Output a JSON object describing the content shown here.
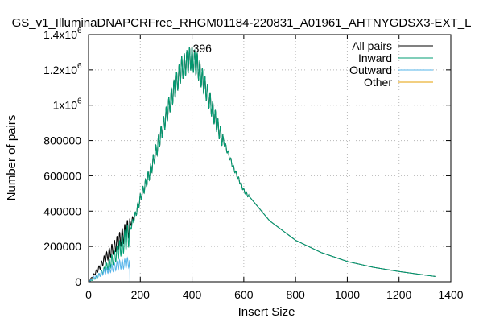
{
  "chart_data": {
    "type": "line",
    "title": "GS_v1_IlluminaDNAPCRFree_RHGM01184-220831_A01961_AHTNYGDSX3-EXT_L",
    "xlabel": "Insert Size",
    "ylabel": "Number of pairs",
    "xlim": [
      0,
      1400
    ],
    "ylim": [
      0,
      1400000
    ],
    "x_ticks": [
      "0",
      "200",
      "400",
      "600",
      "800",
      "1000",
      "1200",
      "1400"
    ],
    "y_ticks": [
      {
        "base": "0",
        "exp": ""
      },
      {
        "base": "200000",
        "exp": ""
      },
      {
        "base": "400000",
        "exp": ""
      },
      {
        "base": "600000",
        "exp": ""
      },
      {
        "base": "800000",
        "exp": ""
      },
      {
        "base": "1x10",
        "exp": "6"
      },
      {
        "base": "1.2x10",
        "exp": "6"
      },
      {
        "base": "1.4x10",
        "exp": "6"
      }
    ],
    "grid": true,
    "legend_position": "top-right",
    "peak_annotation": {
      "label": "396",
      "x": 396,
      "y": 1290000
    },
    "series": [
      {
        "name": "All pairs",
        "color": "#000000",
        "x": [
          0,
          20,
          40,
          60,
          80,
          100,
          120,
          140,
          160,
          180,
          200,
          240,
          280,
          320,
          360,
          396,
          420,
          460,
          500,
          560,
          600,
          700,
          800,
          900,
          1000,
          1100,
          1200,
          1340
        ],
        "y": [
          0,
          40000,
          80000,
          130000,
          170000,
          210000,
          250000,
          290000,
          330000,
          380000,
          480000,
          640000,
          850000,
          1060000,
          1230000,
          1290000,
          1250000,
          1080000,
          890000,
          650000,
          520000,
          345000,
          235000,
          165000,
          115000,
          82000,
          58000,
          30000
        ]
      },
      {
        "name": "Inward",
        "color": "#009e73",
        "x": [
          0,
          20,
          40,
          60,
          80,
          100,
          120,
          140,
          160,
          180,
          200,
          240,
          280,
          320,
          360,
          396,
          420,
          460,
          500,
          560,
          600,
          700,
          800,
          900,
          1000,
          1100,
          1200,
          1340
        ],
        "y": [
          0,
          15000,
          40000,
          70000,
          110000,
          150000,
          200000,
          250000,
          300000,
          380000,
          480000,
          640000,
          850000,
          1060000,
          1230000,
          1290000,
          1250000,
          1080000,
          890000,
          650000,
          520000,
          345000,
          235000,
          165000,
          115000,
          82000,
          58000,
          30000
        ]
      },
      {
        "name": "Outward",
        "color": "#56b4e9",
        "x": [
          0,
          20,
          40,
          60,
          80,
          100,
          120,
          140,
          159,
          160,
          1340
        ],
        "y": [
          0,
          25000,
          40000,
          60000,
          75000,
          90000,
          105000,
          110000,
          120000,
          0,
          0
        ]
      },
      {
        "name": "Other",
        "color": "#e69f00",
        "x": [
          0,
          1340
        ],
        "y": [
          0,
          0
        ]
      }
    ]
  }
}
